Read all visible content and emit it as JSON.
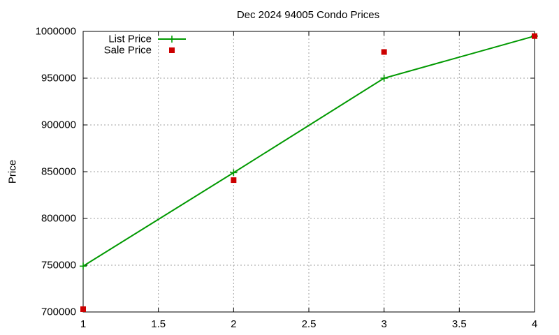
{
  "chart_data": {
    "type": "line",
    "title": "Dec 2024 94005 Condo Prices",
    "xlabel": "",
    "ylabel": "Price",
    "xlim": [
      1,
      4
    ],
    "ylim": [
      700000,
      1000000
    ],
    "x_ticks": [
      "1",
      "1.5",
      "2",
      "2.5",
      "3",
      "3.5",
      "4"
    ],
    "y_ticks": [
      "700000",
      "750000",
      "800000",
      "850000",
      "900000",
      "950000",
      "1000000"
    ],
    "grid": true,
    "legend_position": "top-left",
    "series": [
      {
        "name": "List Price",
        "style": "linespoints",
        "marker": "plus",
        "color": "#009900",
        "points": [
          [
            1,
            749000
          ],
          [
            2,
            849000
          ],
          [
            3,
            950000
          ],
          [
            4,
            995000
          ]
        ]
      },
      {
        "name": "Sale Price",
        "style": "points",
        "marker": "square",
        "color": "#cc0000",
        "points": [
          [
            1,
            703000
          ],
          [
            2,
            841000
          ],
          [
            3,
            978000
          ],
          [
            4,
            995000
          ]
        ]
      }
    ]
  }
}
